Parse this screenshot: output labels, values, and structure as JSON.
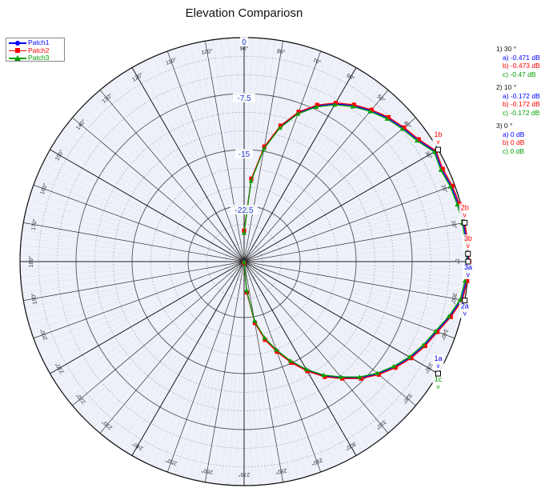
{
  "chart_data": {
    "type": "polar-line",
    "title": "Elevation Compariosn",
    "radial_axis": {
      "min": -30,
      "max": 0,
      "tick_labels": [
        "0",
        "-7.5",
        "-15",
        "-22.5"
      ],
      "tick_values": [
        0,
        -7.5,
        -15,
        -22.5
      ]
    },
    "angular_axis": {
      "zero_at": "right",
      "direction": "counterclockwise",
      "step_deg": 10,
      "tick_labels": [
        "0°",
        "10°",
        "20°",
        "30°",
        "40°",
        "50°",
        "60°",
        "70°",
        "80°",
        "90°",
        "100°",
        "110°",
        "120°",
        "130°",
        "140°",
        "150°",
        "160°",
        "170°",
        "180°",
        "190°",
        "200°",
        "210°",
        "220°",
        "230°",
        "240°",
        "250°",
        "260°",
        "270°",
        "280°",
        "290°",
        "300°",
        "310°",
        "320°",
        "330°",
        "340°",
        "350°"
      ]
    },
    "grid": true,
    "legend": "top-left",
    "series": [
      {
        "name": "Patch1",
        "color": "#0000ff",
        "marker": "circle"
      },
      {
        "name": "Patch2",
        "color": "#ff0000",
        "marker": "square"
      },
      {
        "name": "Patch3",
        "color": "#00a000",
        "marker": "triangle"
      }
    ],
    "pattern": {
      "angles_deg": [
        -90,
        -85,
        -80,
        -75,
        -70,
        -65,
        -60,
        -55,
        -50,
        -45,
        -40,
        -35,
        -30,
        -25,
        -20,
        -15,
        -10,
        -5,
        0,
        5,
        10,
        15,
        20,
        25,
        30,
        35,
        40,
        45,
        50,
        55,
        60,
        65,
        70,
        75,
        80,
        85,
        90
      ],
      "gain_db": [
        -30,
        -26,
        -21.8,
        -19.3,
        -17.3,
        -15.2,
        -13.2,
        -11.3,
        -9.7,
        -8.0,
        -6.6,
        -5.4,
        -4.3,
        -3.4,
        -2.6,
        -1.5,
        -0.47,
        -0.17,
        0,
        -0.09,
        -0.172,
        -0.31,
        -0.48,
        -0.8,
        -0.471,
        -1.6,
        -2.2,
        -2.8,
        -3.6,
        -4.5,
        -5.6,
        -7.0,
        -8.8,
        -11.3,
        -14.5,
        -19.0,
        -26
      ]
    },
    "markers": [
      {
        "id": "1",
        "header": "1) 30 °",
        "a": "a) -0.471 dB",
        "b": "b) -0.473 dB",
        "c": "c) -0.47 dB",
        "angle": 30,
        "value": -0.471
      },
      {
        "id": "2",
        "header": "2) 10 °",
        "a": "a) -0.172 dB",
        "b": "b) -0.172 dB",
        "c": "c) -0.172 dB",
        "angle": 10,
        "value": -0.172
      },
      {
        "id": "3",
        "header": "3) 0 °",
        "a": "a) 0 dB",
        "b": "b) 0 dB",
        "c": "c) 0 dB",
        "angle": 0,
        "value": 0
      }
    ],
    "marker_tags": [
      {
        "text": "1b",
        "color": "#ff0000",
        "angle": 30,
        "side": "up"
      },
      {
        "text": "2b",
        "color": "#ff0000",
        "angle": 10,
        "side": "up"
      },
      {
        "text": "3b",
        "color": "#ff0000",
        "angle": 2,
        "side": "up"
      },
      {
        "text": "3a",
        "color": "#0000ff",
        "angle": 0,
        "side": "down"
      },
      {
        "text": "2a",
        "color": "#0000ff",
        "angle": -10,
        "side": "down"
      },
      {
        "text": "1a",
        "color": "#0000ff",
        "angle": -30,
        "side": "up"
      },
      {
        "text": "1c",
        "color": "#00a000",
        "angle": -30,
        "side": "down"
      }
    ],
    "marker_arrow": "v"
  }
}
